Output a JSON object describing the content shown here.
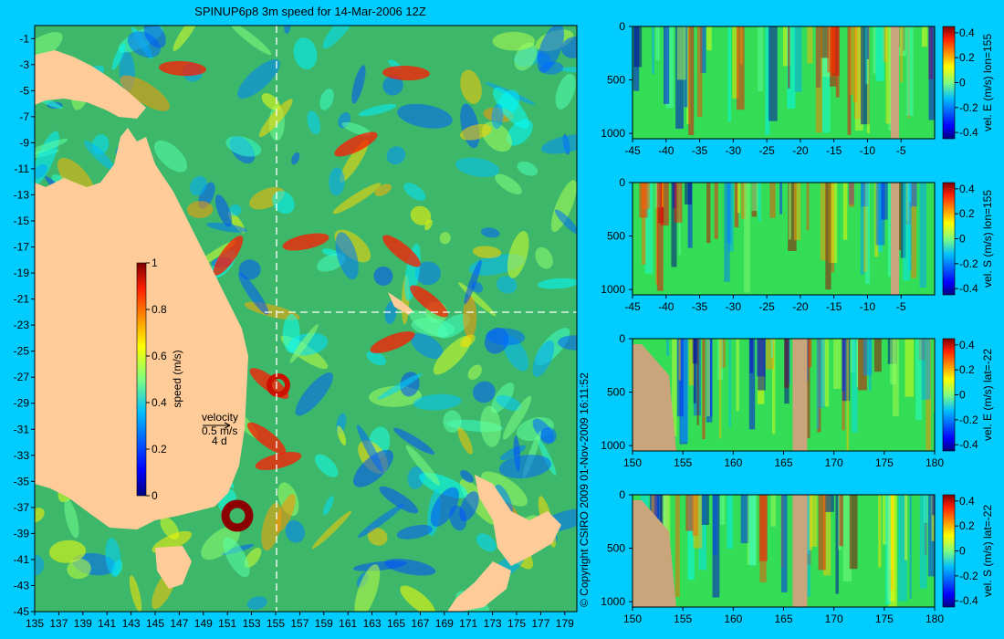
{
  "title": "SPINUP6p8 3m speed for 14-Mar-2006 12Z",
  "copyright": "© Copyright CSIRO 2009   01-Nov-2009 16:11:52",
  "colors": {
    "background": "#00ccff",
    "land_map": "#ffcc99",
    "land_section": "#c8a57a"
  },
  "chart_data": [
    {
      "type": "heatmap",
      "name": "map",
      "title": "SPINUP6p8 3m speed for 14-Mar-2006 12Z",
      "x_ticks": [
        "135",
        "137",
        "139",
        "141",
        "143",
        "145",
        "147",
        "149",
        "151",
        "153",
        "155",
        "157",
        "159",
        "161",
        "163",
        "165",
        "167",
        "169",
        "171",
        "173",
        "175",
        "177",
        "179"
      ],
      "y_ticks": [
        "-1",
        "-3",
        "-5",
        "-7",
        "-9",
        "-11",
        "-13",
        "-15",
        "-17",
        "-19",
        "-21",
        "-23",
        "-25",
        "-27",
        "-29",
        "-31",
        "-33",
        "-35",
        "-37",
        "-39",
        "-41",
        "-43",
        "-45"
      ],
      "xlim": [
        135,
        180
      ],
      "ylim": [
        -45,
        0
      ],
      "section_lon": 155,
      "section_lat": -22,
      "colorbar": {
        "label": "speed (m/s)",
        "ticks": [
          "1",
          "0.8",
          "0.6",
          "0.4",
          "0.2",
          "0"
        ],
        "range": [
          0,
          1
        ]
      },
      "vector_legend": {
        "title": "velocity",
        "speed": "0.5 m/s",
        "time": "4 d"
      },
      "colormap": "jet"
    },
    {
      "type": "heatmap",
      "name": "section-1",
      "x_ticks": [
        "-45",
        "-40",
        "-35",
        "-30",
        "-25",
        "-20",
        "-15",
        "-10",
        "-5"
      ],
      "xlim": [
        -45,
        0
      ],
      "y_ticks": [
        "0",
        "500",
        "1000"
      ],
      "ylim": [
        0,
        1050
      ],
      "colorbar": {
        "label": "vel. E (m/s) lon=155",
        "ticks": [
          "0.4",
          "0.2",
          "0",
          "-0.2",
          "-0.4"
        ],
        "range": [
          -0.45,
          0.45
        ]
      }
    },
    {
      "type": "heatmap",
      "name": "section-2",
      "x_ticks": [
        "-45",
        "-40",
        "-35",
        "-30",
        "-25",
        "-20",
        "-15",
        "-10",
        "-5"
      ],
      "xlim": [
        -45,
        0
      ],
      "y_ticks": [
        "0",
        "500",
        "1000"
      ],
      "ylim": [
        0,
        1050
      ],
      "colorbar": {
        "label": "vel. S (m/s) lon=155",
        "ticks": [
          "0.4",
          "0.2",
          "0",
          "-0.2",
          "-0.4"
        ],
        "range": [
          -0.45,
          0.45
        ]
      }
    },
    {
      "type": "heatmap",
      "name": "section-3",
      "x_ticks": [
        "150",
        "155",
        "160",
        "165",
        "170",
        "175",
        "180"
      ],
      "xlim": [
        150,
        180
      ],
      "y_ticks": [
        "0",
        "500",
        "1000"
      ],
      "ylim": [
        0,
        1050
      ],
      "colorbar": {
        "label": "vel. E (m/s) lat=-22",
        "ticks": [
          "0.4",
          "0.2",
          "0",
          "-0.2",
          "-0.4"
        ],
        "range": [
          -0.45,
          0.45
        ]
      }
    },
    {
      "type": "heatmap",
      "name": "section-4",
      "x_ticks": [
        "150",
        "155",
        "160",
        "165",
        "170",
        "175",
        "180"
      ],
      "xlim": [
        150,
        180
      ],
      "y_ticks": [
        "0",
        "500",
        "1000"
      ],
      "ylim": [
        0,
        1050
      ],
      "colorbar": {
        "label": "vel. S (m/s) lat=-22",
        "ticks": [
          "0.4",
          "0.2",
          "0",
          "-0.2",
          "-0.4"
        ],
        "range": [
          -0.45,
          0.45
        ]
      }
    }
  ]
}
